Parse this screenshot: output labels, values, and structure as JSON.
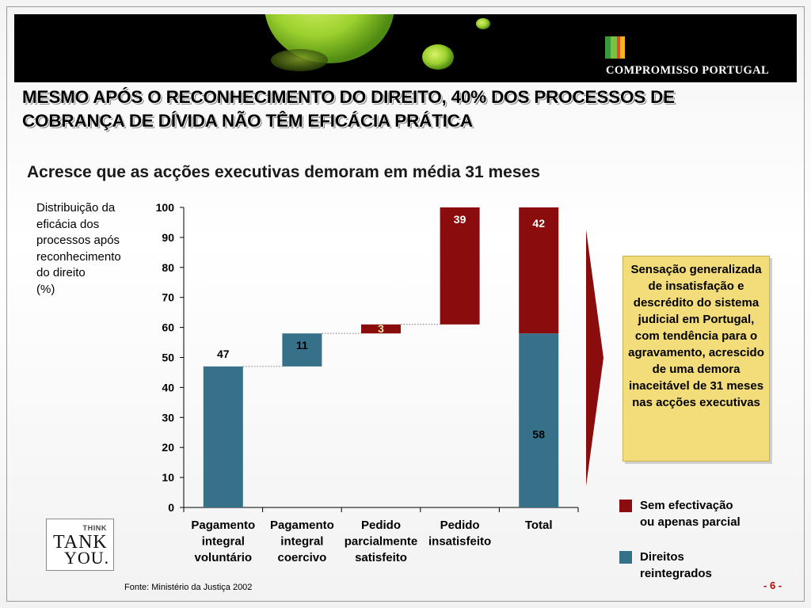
{
  "header": {
    "brand": "COMPROMISSO PORTUGAL",
    "logo_colors": [
      "#3a9a3a",
      "#7cc043",
      "#e74c1c",
      "#f2b51b"
    ]
  },
  "slide": {
    "title_line1": "MESMO APÓS O RECONHECIMENTO DO DIREITO, 40% DOS PROCESSOS DE",
    "title_line2": "COBRANÇA DE DÍVIDA NÃO TÊM EFICÁCIA PRÁTICA",
    "subtitle": "Acresce que as acções executivas demoram em média 31 meses"
  },
  "chart_data": {
    "type": "bar",
    "subtype": "waterfall",
    "ylabel_lines": [
      "Distribuição da",
      "eficácia dos",
      "processos após",
      "reconhecimento",
      "do direito",
      "(%)"
    ],
    "ylim": [
      0,
      100
    ],
    "yticks": [
      0,
      10,
      20,
      30,
      40,
      50,
      60,
      70,
      80,
      90,
      100
    ],
    "categories": [
      [
        "Pagamento",
        "integral",
        "voluntário"
      ],
      [
        "Pagamento",
        "integral",
        "coercivo"
      ],
      [
        "Pedido",
        "parcialmente",
        "satisfeito"
      ],
      [
        "Pedido",
        "insatisfeito"
      ],
      [
        "Total"
      ]
    ],
    "bars": [
      {
        "category": 0,
        "base": 0,
        "value": 47,
        "series": "Direitos reintegrados",
        "label": "47",
        "label_pos": "above"
      },
      {
        "category": 1,
        "base": 47,
        "value": 11,
        "series": "Direitos reintegrados",
        "label": "11",
        "label_pos": "inside"
      },
      {
        "category": 2,
        "base": 58,
        "value": 3,
        "series": "Sem efectivação ou apenas parcial",
        "label": "3",
        "label_pos": "inside"
      },
      {
        "category": 3,
        "base": 61,
        "value": 39,
        "series": "Sem efectivação ou apenas parcial",
        "label": "39",
        "label_pos": "inside"
      },
      {
        "category": 4,
        "base": 0,
        "value": 58,
        "series": "Direitos reintegrados",
        "label": "58",
        "label_pos": "inside"
      },
      {
        "category": 4,
        "base": 58,
        "value": 42,
        "series": "Sem efectivação ou apenas parcial",
        "label": "42",
        "label_pos": "inside"
      }
    ],
    "connectors": [
      47,
      58,
      61
    ],
    "series": [
      {
        "name": "Sem efectivação ou apenas parcial",
        "color": "#8b0c0c"
      },
      {
        "name": "Direitos reintegrados",
        "color": "#367189"
      }
    ],
    "grid": false
  },
  "callout": {
    "text": "Sensação generalizada de insatisfação e descrédito do sistema judicial em Portugal, com tendência para o agravamento, acrescido de uma demora inaceitável de 31 meses nas acções executivas"
  },
  "legend": {
    "items": [
      {
        "label_line1": "Sem efectivação",
        "label_line2": "ou apenas parcial",
        "color": "#8b0c0c"
      },
      {
        "label_line1": "Direitos",
        "label_line2": "reintegrados",
        "color": "#367189"
      }
    ]
  },
  "footer": {
    "source": "Fonte:  Ministério da Justiça 2002",
    "page": "- 6 -",
    "logo_think": "THINK",
    "logo_tank": "TANK",
    "logo_you": "YOU."
  }
}
